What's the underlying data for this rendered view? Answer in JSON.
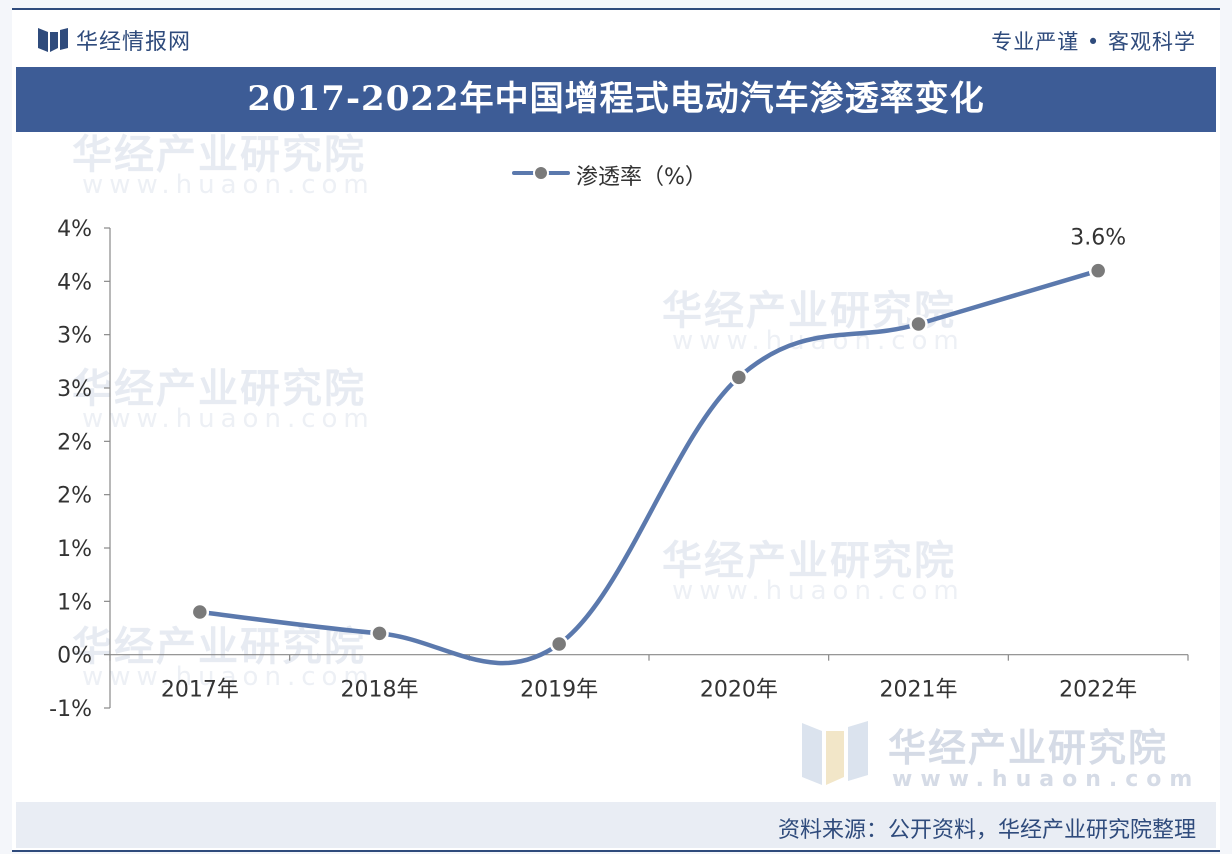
{
  "header": {
    "brand_name": "华经情报网",
    "slogan": "专业严谨 • 客观科学",
    "logo_icon": "huajing-logo-icon"
  },
  "title": "2017-2022年中国增程式电动汽车渗透率变化",
  "watermark": {
    "text": "华经产业研究院",
    "url": "www.huaon.com"
  },
  "corner_brand": {
    "name": "华经产业研究院",
    "url": "www.huaon.com"
  },
  "source": "资料来源：公开资料，华经产业研究院整理",
  "chart_data": {
    "type": "line",
    "categories": [
      "2017年",
      "2018年",
      "2019年",
      "2020年",
      "2021年",
      "2022年"
    ],
    "series": [
      {
        "name": "渗透率（%）",
        "values": [
          0.4,
          0.2,
          0.1,
          2.6,
          3.1,
          3.6
        ],
        "color": "#5b79ad",
        "marker_color": "#7a7a7a"
      }
    ],
    "data_labels": [
      {
        "index": 5,
        "text": "3.6%"
      }
    ],
    "y_ticks": [
      {
        "value": -0.5,
        "label": "-1%"
      },
      {
        "value": 0,
        "label": "0%"
      },
      {
        "value": 0.5,
        "label": "1%"
      },
      {
        "value": 1.0,
        "label": "1%"
      },
      {
        "value": 1.5,
        "label": "2%"
      },
      {
        "value": 2.0,
        "label": "2%"
      },
      {
        "value": 2.5,
        "label": "3%"
      },
      {
        "value": 3.0,
        "label": "3%"
      },
      {
        "value": 3.5,
        "label": "4%"
      },
      {
        "value": 4.0,
        "label": "4%"
      }
    ],
    "ylim": [
      -0.5,
      4.0
    ],
    "grid": false,
    "legend_position": "top-center",
    "smooth": true
  }
}
